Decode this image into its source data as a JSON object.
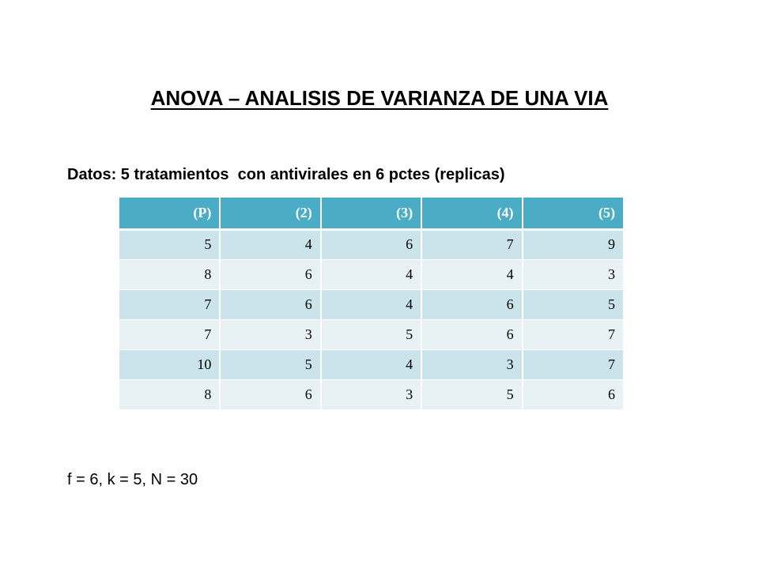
{
  "title": "ANOVA – ANALISIS DE VARIANZA DE UNA VIA",
  "data_line": "Datos: 5 tratamientos  con antivirales en 6 pctes (replicas)",
  "table": {
    "headers": [
      "(P)",
      "(2)",
      "(3)",
      "(4)",
      "(5)"
    ],
    "rows": [
      [
        "5",
        "4",
        "6",
        "7",
        "9"
      ],
      [
        "8",
        "6",
        "4",
        "4",
        "3"
      ],
      [
        "7",
        "6",
        "4",
        "6",
        "5"
      ],
      [
        "7",
        "3",
        "5",
        "6",
        "7"
      ],
      [
        "10",
        "5",
        "4",
        "3",
        "7"
      ],
      [
        "8",
        "6",
        "3",
        "5",
        "6"
      ]
    ],
    "colors": {
      "header_bg": "#4bacc6",
      "band_dark": "#cbe3ea",
      "band_light": "#e8f2f5"
    }
  },
  "summary": "f = 6, k = 5, N = 30"
}
